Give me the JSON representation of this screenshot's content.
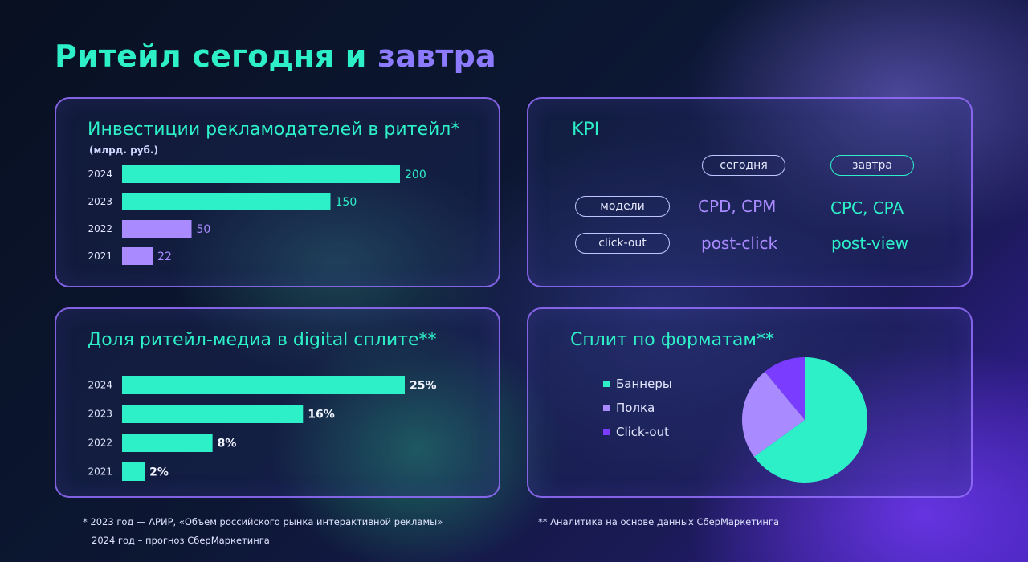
{
  "title": {
    "part1": "Ритейл сегодня и ",
    "part2": "завтра"
  },
  "colors": {
    "teal": "#2ef0c8",
    "lavender": "#a98bff",
    "violet": "#7a3cff"
  },
  "invest": {
    "title": "Инвестиции рекламодателей в ритейл*",
    "subtitle": "(млрд. руб.)"
  },
  "share": {
    "title": "Доля ритейл-медиа в digital сплите**"
  },
  "kpi": {
    "title": "KPI",
    "col_today": "сегодня",
    "col_tomorrow": "завтра",
    "row1_label": "модели",
    "row1_today": "CPD, CPM",
    "row1_tomorrow": "CPC, CPA",
    "row2_label": "click-out",
    "row2_today": "post-click",
    "row2_tomorrow": "post-view"
  },
  "split": {
    "title": "Сплит по форматам**"
  },
  "chart_data": [
    {
      "type": "bar",
      "orientation": "horizontal",
      "title": "Инвестиции рекламодателей в ритейл*",
      "subtitle": "(млрд. руб.)",
      "categories": [
        "2024",
        "2023",
        "2022",
        "2021"
      ],
      "values": [
        200,
        150,
        50,
        22
      ],
      "labels": [
        "200",
        "150",
        "50",
        "22"
      ],
      "bar_colors": [
        "#2ef0c8",
        "#2ef0c8",
        "#a98bff",
        "#a98bff"
      ],
      "xlim": [
        0,
        200
      ]
    },
    {
      "type": "bar",
      "orientation": "horizontal",
      "title": "Доля ритейл-медиа в digital сплите**",
      "categories": [
        "2024",
        "2023",
        "2022",
        "2021"
      ],
      "values": [
        25,
        16,
        8,
        2
      ],
      "labels": [
        "25%",
        "16%",
        "8%",
        "2%"
      ],
      "bar_colors": [
        "#2ef0c8",
        "#2ef0c8",
        "#2ef0c8",
        "#2ef0c8"
      ],
      "xlim": [
        0,
        25
      ]
    },
    {
      "type": "pie",
      "title": "Сплит по форматам**",
      "slices": [
        {
          "name": "Баннеры",
          "value": 65,
          "color": "#2ef0c8"
        },
        {
          "name": "Полка",
          "value": 24,
          "color": "#a98bff"
        },
        {
          "name": "Click-out",
          "value": 11,
          "color": "#7a3cff"
        }
      ],
      "legend": "left"
    }
  ],
  "footnotes": {
    "note1_line1": "* 2023 год — АРИР, «Объем российского рынка интерактивной рекламы»",
    "note1_line2": "2024 год – прогноз СберМаркетинга",
    "note2": "** Аналитика на основе данных СберМаркетинга"
  }
}
